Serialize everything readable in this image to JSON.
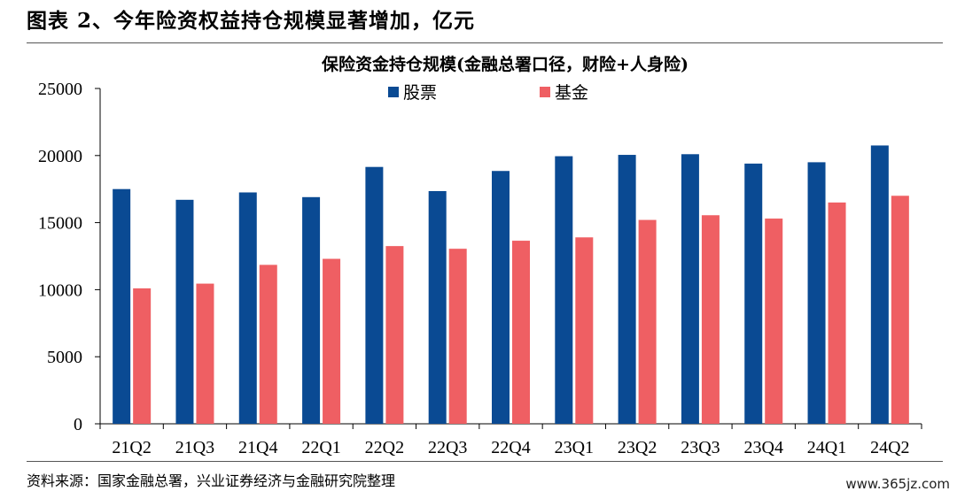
{
  "figure_title": "图表 2、今年险资权益持仓规模显著增加，亿元",
  "source_note": "资料来源：国家金融总署，兴业证券经济与金融研究院整理",
  "watermark": "www.365jz.com",
  "colors": {
    "stock": "#0a4a93",
    "fund": "#ef5f63",
    "axis": "#000000"
  },
  "chart_data": {
    "type": "bar",
    "title": "保险资金持仓规模(金融总署口径，财险+人身险)",
    "xlabel": "",
    "ylabel": "",
    "ylim": [
      0,
      25000
    ],
    "yticks": [
      0,
      5000,
      10000,
      15000,
      20000,
      25000
    ],
    "grid": false,
    "legend_position": "top-center",
    "categories": [
      "21Q2",
      "21Q3",
      "21Q4",
      "22Q1",
      "22Q2",
      "22Q3",
      "22Q4",
      "23Q1",
      "23Q2",
      "23Q3",
      "23Q4",
      "24Q1",
      "24Q2"
    ],
    "series": [
      {
        "name": "股票",
        "color": "#0a4a93",
        "values": [
          17500,
          16700,
          17250,
          16900,
          19150,
          17350,
          18850,
          19950,
          20050,
          20100,
          19400,
          19500,
          20750
        ]
      },
      {
        "name": "基金",
        "color": "#ef5f63",
        "values": [
          10100,
          10450,
          11850,
          12300,
          13250,
          13050,
          13650,
          13900,
          15200,
          15550,
          15300,
          16500,
          17000
        ]
      }
    ]
  }
}
